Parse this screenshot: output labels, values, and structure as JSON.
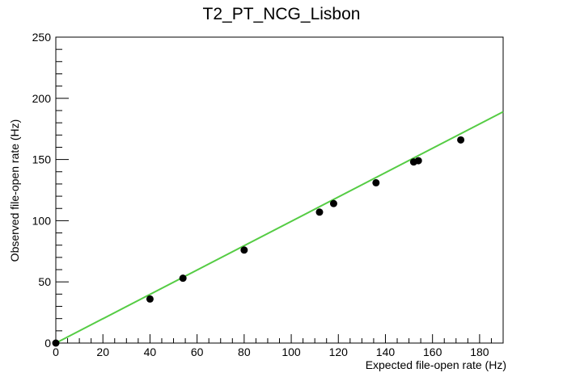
{
  "chart_data": {
    "type": "scatter",
    "title": "T2_PT_NCG_Lisbon",
    "xlabel": "Expected file-open rate (Hz)",
    "ylabel": "Observed file-open rate (Hz)",
    "xlim": [
      0,
      190
    ],
    "ylim": [
      0,
      250
    ],
    "x_ticks": [
      "0",
      "20",
      "40",
      "60",
      "80",
      "100",
      "120",
      "140",
      "160",
      "180"
    ],
    "y_ticks": [
      "0",
      "50",
      "100",
      "150",
      "200",
      "250"
    ],
    "grid": false,
    "legend": "none",
    "series": [
      {
        "kind": "points",
        "color": "#000000",
        "x": [
          0,
          40,
          54,
          80,
          112,
          118,
          136,
          152,
          154,
          172
        ],
        "y": [
          0,
          36,
          53,
          76,
          107,
          114,
          131,
          148,
          149,
          166
        ]
      },
      {
        "kind": "fit-line",
        "color": "#55cc44",
        "x": [
          0,
          190
        ],
        "y": [
          0,
          189
        ]
      }
    ]
  }
}
